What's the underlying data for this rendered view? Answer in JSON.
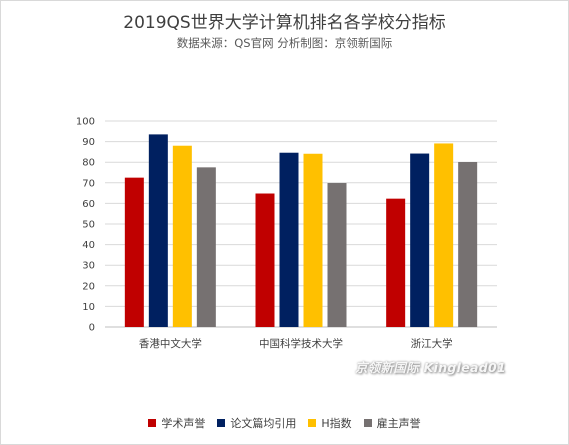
{
  "chart_data": {
    "type": "bar",
    "title": "2019QS世界大学计算机排名各学校分指标",
    "subtitle": "数据来源：QS官网 分析制图：京领新国际",
    "categories": [
      "香港中文大学",
      "中国科学技术大学",
      "浙江大学"
    ],
    "series": [
      {
        "name": "学术声誉",
        "color": "#c00000",
        "values": [
          72.5,
          64.8,
          62.3
        ]
      },
      {
        "name": "论文篇均引用",
        "color": "#002060",
        "values": [
          93.5,
          84.6,
          84.2
        ]
      },
      {
        "name": "H指数",
        "color": "#ffc000",
        "values": [
          88.0,
          84.1,
          89.1
        ]
      },
      {
        "name": "雇主声誉",
        "color": "#767171",
        "values": [
          77.5,
          69.9,
          80.1
        ]
      }
    ],
    "ylim": [
      0,
      100
    ],
    "yticks": [
      0,
      10,
      20,
      30,
      40,
      50,
      60,
      70,
      80,
      90,
      100
    ],
    "grid": true,
    "legend": "bottom"
  },
  "watermark": "京领新国际 Kinglead01"
}
